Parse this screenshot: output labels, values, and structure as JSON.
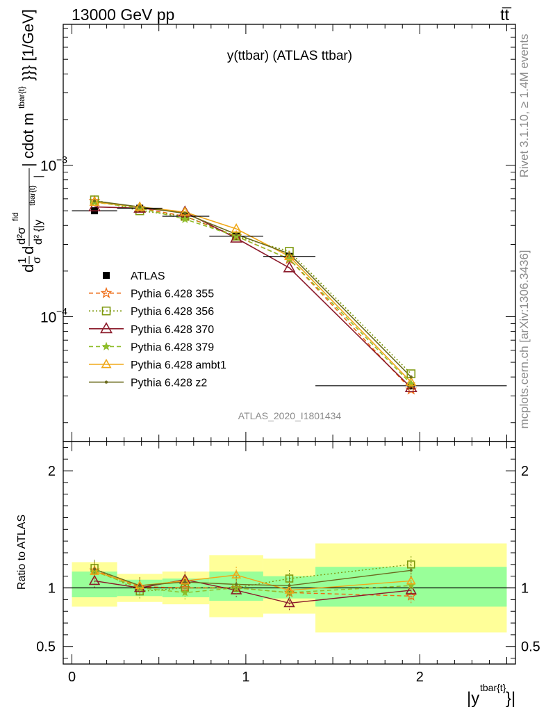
{
  "header": {
    "left": "13000 GeV pp",
    "right": "tt̅"
  },
  "side_labels": {
    "rivet": "Rivet 3.1.10, ≥ 1.4M events",
    "mcplots": "mcplots.cern.ch [arXiv:1306.3436]"
  },
  "watermark": "ATLAS_2020_I1801434",
  "colors": {
    "atlas": "#000000",
    "p355": "#ee6a12",
    "p356": "#7f9a10",
    "p370": "#8b1a2a",
    "p379": "#8fbd2a",
    "ambt1": "#f0a818",
    "z2": "#6b6b1e",
    "band_inner": "#99ff99",
    "band_outer": "#ffff99"
  },
  "chart_data": [
    {
      "type": "line",
      "title": "y(ttbar) (ATLAS ttbar)",
      "ylabel_parts": {
        "d1": "d",
        "one": "1",
        "d2": "d",
        "sigma_num": "d²σ",
        "fid": "fid",
        "sigma_den": "σ",
        "den": "d² {|y",
        "den_sup": "tbar{t}",
        "den_tail": "|",
        "tail": "| cdot m",
        "tail_sup": "tbar{t}",
        "unit": "}}} [1/GeV]"
      },
      "y_scale": "log",
      "ylim": [
        1.5e-05,
        0.0085
      ],
      "xlim": [
        -0.05,
        2.55
      ],
      "y_ticks": [
        {
          "value": 0.001,
          "base": "10",
          "exp": "−3"
        },
        {
          "value": 0.0001,
          "base": "10",
          "exp": "−4"
        }
      ],
      "legend_position": "middle-left",
      "x": [
        0.13,
        0.39,
        0.65,
        0.945,
        1.25,
        1.95
      ],
      "bins": [
        [
          0.0,
          0.26
        ],
        [
          0.26,
          0.52
        ],
        [
          0.52,
          0.79
        ],
        [
          0.79,
          1.1
        ],
        [
          1.1,
          1.4
        ],
        [
          1.4,
          2.5
        ]
      ],
      "series": [
        {
          "name": "ATLAS",
          "key": "atlas",
          "style": "atlas",
          "values": [
            0.0005,
            0.00052,
            0.00046,
            0.00034,
            0.00025,
            3.5e-05
          ]
        },
        {
          "name": "Pythia 6.428 355",
          "key": "p355",
          "style": "dash",
          "marker": "star",
          "values": [
            0.00058,
            0.00052,
            0.00046,
            0.00034,
            0.00024,
            3.3e-05
          ]
        },
        {
          "name": "Pythia 6.428 356",
          "key": "p356",
          "style": "dot",
          "marker": "square",
          "values": [
            0.00059,
            0.0005,
            0.00046,
            0.00034,
            0.00027,
            4.2e-05
          ]
        },
        {
          "name": "Pythia 6.428 370",
          "key": "p370",
          "style": "solid",
          "marker": "triangle",
          "values": [
            0.00053,
            0.00052,
            0.00049,
            0.00033,
            0.00021,
            3.4e-05
          ]
        },
        {
          "name": "Pythia 6.428 379",
          "key": "p379",
          "style": "dash",
          "marker": "smallstar",
          "values": [
            0.00057,
            0.00052,
            0.00044,
            0.00034,
            0.00024,
            3.6e-05
          ]
        },
        {
          "name": "Pythia 6.428 ambt1",
          "key": "ambt1",
          "style": "solid",
          "marker": "opentri",
          "values": [
            0.00057,
            0.00053,
            0.00049,
            0.00038,
            0.00025,
            3.7e-05
          ]
        },
        {
          "name": "Pythia 6.428 z2",
          "key": "z2",
          "style": "solid",
          "marker": "dot",
          "values": [
            0.00058,
            0.00053,
            0.00048,
            0.00035,
            0.00026,
            4e-05
          ]
        }
      ]
    },
    {
      "type": "line",
      "ylabel": "Ratio to ATLAS",
      "xlabel_base": "|y",
      "xlabel_sup": "tbar{t}",
      "xlabel_tail": "}|",
      "ylim": [
        0.35,
        2.25
      ],
      "xlim": [
        -0.05,
        2.55
      ],
      "y_ticks": [
        {
          "value": 0.5,
          "label": "0.5"
        },
        {
          "value": 1,
          "label": "1"
        },
        {
          "value": 2,
          "label": "2"
        }
      ],
      "x_ticks": [
        {
          "value": 0,
          "label": "0"
        },
        {
          "value": 1,
          "label": "1"
        },
        {
          "value": 2,
          "label": "2"
        }
      ],
      "bands": [
        {
          "x": [
            0.0,
            0.26
          ],
          "inner": [
            0.92,
            1.14
          ],
          "outer": [
            0.84,
            1.22
          ]
        },
        {
          "x": [
            0.26,
            0.52
          ],
          "inner": [
            0.93,
            1.07
          ],
          "outer": [
            0.88,
            1.12
          ]
        },
        {
          "x": [
            0.52,
            0.79
          ],
          "inner": [
            0.92,
            1.08
          ],
          "outer": [
            0.86,
            1.14
          ]
        },
        {
          "x": [
            0.79,
            1.1
          ],
          "inner": [
            0.89,
            1.14
          ],
          "outer": [
            0.75,
            1.28
          ]
        },
        {
          "x": [
            1.1,
            1.4
          ],
          "inner": [
            0.91,
            1.1
          ],
          "outer": [
            0.78,
            1.25
          ]
        },
        {
          "x": [
            1.4,
            2.5
          ],
          "inner": [
            0.84,
            1.18
          ],
          "outer": [
            0.62,
            1.38
          ]
        }
      ],
      "x": [
        0.13,
        0.39,
        0.65,
        0.945,
        1.25,
        1.95
      ],
      "series": [
        {
          "name": "Pythia 6.428 355",
          "key": "p355",
          "values": [
            1.15,
            1.01,
            1.0,
            1.0,
            0.96,
            0.93
          ]
        },
        {
          "name": "Pythia 6.428 356",
          "key": "p356",
          "values": [
            1.17,
            0.97,
            1.0,
            1.0,
            1.08,
            1.2
          ]
        },
        {
          "name": "Pythia 6.428 370",
          "key": "p370",
          "values": [
            1.06,
            1.0,
            1.07,
            0.98,
            0.87,
            0.98
          ]
        },
        {
          "name": "Pythia 6.428 379",
          "key": "p379",
          "values": [
            1.14,
            1.0,
            0.96,
            1.0,
            0.96,
            1.02
          ]
        },
        {
          "name": "Pythia 6.428 ambt1",
          "key": "ambt1",
          "values": [
            1.14,
            1.02,
            1.06,
            1.11,
            0.98,
            1.06
          ]
        },
        {
          "name": "Pythia 6.428 z2",
          "key": "z2",
          "values": [
            1.16,
            1.02,
            1.05,
            1.03,
            1.02,
            1.15
          ]
        }
      ]
    }
  ]
}
